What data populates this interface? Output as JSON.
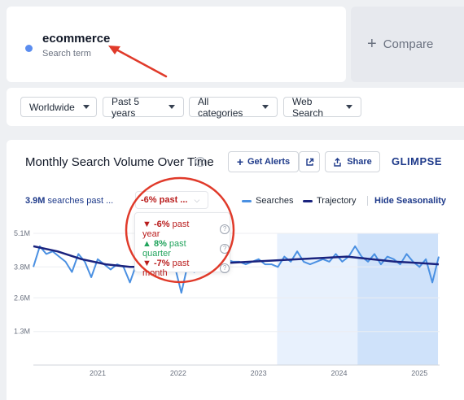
{
  "search_term": {
    "name": "ecommerce",
    "subtitle": "Search term",
    "dot_color": "#5b8def"
  },
  "compare": {
    "label": "Compare"
  },
  "filters": [
    {
      "label": "Worldwide"
    },
    {
      "label": "Past 5 years"
    },
    {
      "label": "All categories"
    },
    {
      "label": "Web Search"
    }
  ],
  "chart_header": {
    "title": "Monthly Search Volume Over Time",
    "get_alerts": "Get Alerts",
    "share": "Share",
    "logo": "GLIMPSE"
  },
  "summary": {
    "volume": "3.9M",
    "volume_suffix": "searches past ...",
    "trend_selected": "-6% past ..."
  },
  "trend_popover": [
    {
      "arrow": "▼",
      "value": "-6%",
      "period": "past year",
      "color": "#b91c1c"
    },
    {
      "arrow": "▲",
      "value": "8%",
      "period": "past quarter",
      "color": "#22a45d"
    },
    {
      "arrow": "▼",
      "value": "-7%",
      "period": "past month",
      "color": "#b91c1c"
    }
  ],
  "legend": {
    "searches": "Searches",
    "trajectory": "Trajectory",
    "hide_seasonality": "Hide Seasonality",
    "searches_color": "#4a90e2",
    "trajectory_color": "#1a237e"
  },
  "chart_data": {
    "type": "line",
    "y_ticks": [
      "5.1M",
      "3.8M",
      "2.6M",
      "1.3M"
    ],
    "y_tick_values": [
      5.1,
      3.8,
      2.6,
      1.3
    ],
    "ylim": [
      0,
      5.1
    ],
    "x_ticks": [
      "2021",
      "2022",
      "2023",
      "2024",
      "2025"
    ],
    "x_tick_values": [
      2021,
      2022,
      2023,
      2024,
      2025
    ],
    "xlim": [
      2020.2,
      2025.25
    ],
    "shaded_ranges": [
      {
        "from": 2023.23,
        "to": 2024.23,
        "color": "#e8f1fd"
      },
      {
        "from": 2024.23,
        "to": 2025.23,
        "color": "#cfe2fa"
      }
    ],
    "series": [
      {
        "name": "Searches",
        "x": [
          2020.2,
          2020.28,
          2020.36,
          2020.44,
          2020.52,
          2020.6,
          2020.68,
          2020.76,
          2020.84,
          2020.92,
          2021.0,
          2021.08,
          2021.16,
          2021.24,
          2021.32,
          2021.4,
          2021.48,
          2021.56,
          2021.64,
          2021.72,
          2021.8,
          2021.88,
          2021.96,
          2022.04,
          2022.12,
          2022.2,
          2022.28,
          2022.36,
          2022.44,
          2022.52,
          2022.6,
          2022.68,
          2022.76,
          2022.84,
          2022.92,
          2023.0,
          2023.08,
          2023.16,
          2023.24,
          2023.32,
          2023.4,
          2023.48,
          2023.56,
          2023.64,
          2023.72,
          2023.8,
          2023.88,
          2023.96,
          2024.04,
          2024.12,
          2024.2,
          2024.28,
          2024.36,
          2024.44,
          2024.52,
          2024.6,
          2024.68,
          2024.76,
          2024.84,
          2024.92,
          2025.0,
          2025.08,
          2025.16,
          2025.24
        ],
        "y": [
          3.8,
          4.6,
          4.3,
          4.4,
          4.2,
          4.0,
          3.6,
          4.3,
          4.0,
          3.4,
          4.1,
          3.9,
          3.7,
          3.9,
          3.8,
          3.2,
          3.9,
          3.7,
          3.8,
          3.9,
          3.9,
          4.0,
          3.8,
          2.8,
          3.9,
          3.6,
          3.9,
          4.0,
          3.8,
          3.7,
          4.1,
          4.0,
          4.0,
          3.9,
          4.0,
          4.1,
          3.9,
          3.9,
          3.8,
          4.2,
          4.0,
          4.4,
          4.0,
          3.9,
          4.0,
          4.1,
          4.0,
          4.3,
          4.0,
          4.2,
          4.6,
          4.2,
          4.0,
          4.3,
          3.9,
          4.2,
          4.1,
          3.9,
          4.3,
          4.0,
          3.8,
          4.1,
          3.2,
          4.2
        ]
      },
      {
        "name": "Trajectory",
        "x": [
          2020.2,
          2020.5,
          2020.8,
          2021.1,
          2021.4,
          2021.7,
          2022.0,
          2022.3,
          2022.6,
          2022.9,
          2023.2,
          2023.5,
          2023.8,
          2024.1,
          2024.4,
          2024.7,
          2025.0,
          2025.24
        ],
        "y": [
          4.6,
          4.4,
          4.1,
          3.9,
          3.8,
          3.8,
          3.85,
          3.9,
          3.95,
          4.0,
          4.05,
          4.1,
          4.15,
          4.2,
          4.1,
          4.0,
          3.95,
          3.9
        ]
      }
    ]
  }
}
